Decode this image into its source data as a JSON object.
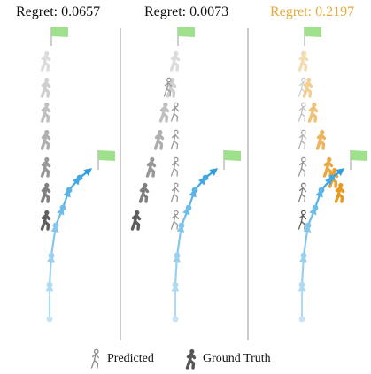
{
  "colors": {
    "regret_default": "#111111",
    "regret_highlight": "#e8a93a",
    "trajectory_light": "#c5e4f5",
    "trajectory_dark": "#2f9fe0",
    "flag": "#9ee08c",
    "divider": "#9a9a9a"
  },
  "panels": [
    {
      "regret_label": "Regret: 0.0657",
      "highlight": false
    },
    {
      "regret_label": "Regret: 0.0073",
      "highlight": false
    },
    {
      "regret_label": "Regret: 0.2197",
      "highlight": true
    }
  ],
  "legend": {
    "predicted_label": "Predicted",
    "ground_truth_label": "Ground Truth",
    "predicted_icon": "walker-outline-icon",
    "ground_truth_icon": "walker-filled-icon"
  }
}
